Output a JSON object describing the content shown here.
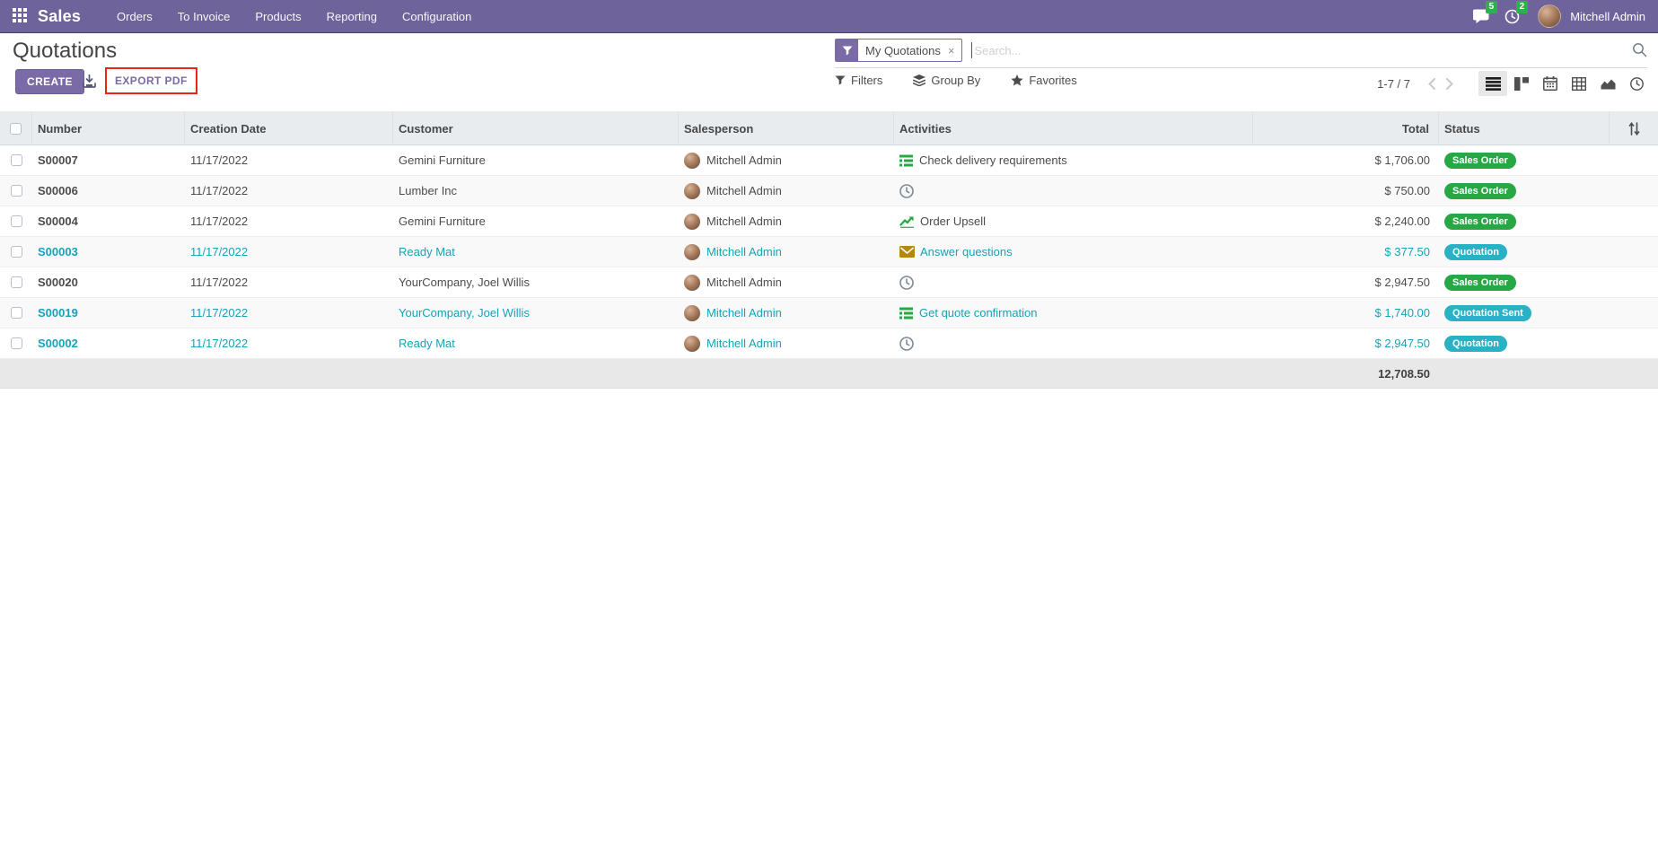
{
  "navbar": {
    "app_name": "Sales",
    "menus": [
      "Orders",
      "To Invoice",
      "Products",
      "Reporting",
      "Configuration"
    ],
    "messages_badge": "5",
    "activities_badge": "2",
    "user_name": "Mitchell Admin"
  },
  "control_panel": {
    "title": "Quotations",
    "create_label": "CREATE",
    "export_pdf_label": "EXPORT PDF",
    "search": {
      "facet_label": "My Quotations",
      "remove_facet": "×",
      "placeholder": "Search..."
    },
    "filters_label": "Filters",
    "group_by_label": "Group By",
    "favorites_label": "Favorites",
    "pager": "1-7 / 7"
  },
  "table": {
    "headers": [
      "Number",
      "Creation Date",
      "Customer",
      "Salesperson",
      "Activities",
      "Total",
      "Status"
    ],
    "rows": [
      {
        "number": "S00007",
        "date": "11/17/2022",
        "customer": "Gemini Furniture",
        "salesperson": "Mitchell Admin",
        "activity_icon": "list-check",
        "activity_label": "Check delivery requirements",
        "total": "$ 1,706.00",
        "status": "Sales Order",
        "status_type": "success",
        "row_tone": "default"
      },
      {
        "number": "S00006",
        "date": "11/17/2022",
        "customer": "Lumber Inc",
        "salesperson": "Mitchell Admin",
        "activity_icon": "clock",
        "activity_label": "",
        "total": "$ 750.00",
        "status": "Sales Order",
        "status_type": "success",
        "row_tone": "default"
      },
      {
        "number": "S00004",
        "date": "11/17/2022",
        "customer": "Gemini Furniture",
        "salesperson": "Mitchell Admin",
        "activity_icon": "chart-up",
        "activity_label": "Order Upsell",
        "total": "$ 2,240.00",
        "status": "Sales Order",
        "status_type": "success",
        "row_tone": "default"
      },
      {
        "number": "S00003",
        "date": "11/17/2022",
        "customer": "Ready Mat",
        "salesperson": "Mitchell Admin",
        "activity_icon": "envelope",
        "activity_label": "Answer questions",
        "total": "$ 377.50",
        "status": "Quotation",
        "status_type": "info",
        "row_tone": "info"
      },
      {
        "number": "S00020",
        "date": "11/17/2022",
        "customer": "YourCompany, Joel Willis",
        "salesperson": "Mitchell Admin",
        "activity_icon": "clock",
        "activity_label": "",
        "total": "$ 2,947.50",
        "status": "Sales Order",
        "status_type": "success",
        "row_tone": "default"
      },
      {
        "number": "S00019",
        "date": "11/17/2022",
        "customer": "YourCompany, Joel Willis",
        "salesperson": "Mitchell Admin",
        "activity_icon": "list-check",
        "activity_label": "Get quote confirmation",
        "total": "$ 1,740.00",
        "status": "Quotation Sent",
        "status_type": "info",
        "row_tone": "info"
      },
      {
        "number": "S00002",
        "date": "11/17/2022",
        "customer": "Ready Mat",
        "salesperson": "Mitchell Admin",
        "activity_icon": "clock",
        "activity_label": "",
        "total": "$ 2,947.50",
        "status": "Quotation",
        "status_type": "info",
        "row_tone": "info"
      }
    ],
    "footer_total": "12,708.50"
  },
  "colors": {
    "navbar_bg": "#6f639b",
    "primary": "#7a6aa5",
    "success_badge": "#28a745",
    "info_badge": "#29b1c6",
    "info_text": "#17a2b8",
    "annotation_red": "#e8251a",
    "notification_green": "#2faf4e"
  }
}
